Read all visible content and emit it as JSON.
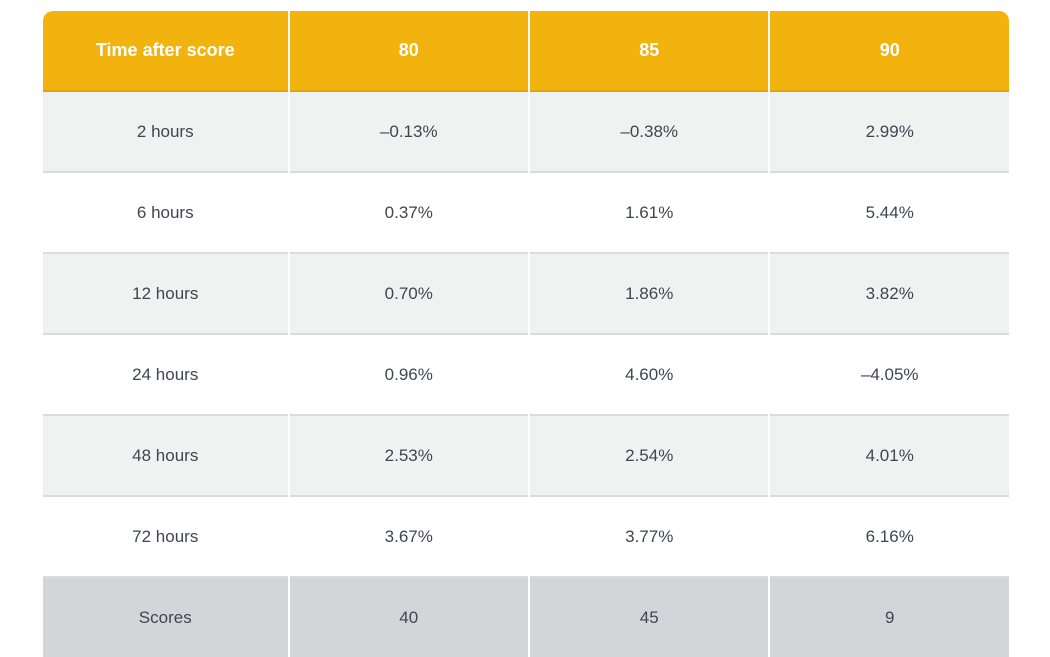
{
  "colors": {
    "header_bg": "#F2B30E",
    "header_text": "#FFFFFF",
    "header_bottom_border": "#DDA30F",
    "row_alt_bg": "#F0F2F2",
    "row_bg": "#FFFFFF",
    "row_border": "#D8DCDF",
    "footer_bg": "#D2D6D8",
    "cell_text": "#3E4650",
    "column_separator": "#FFFFFF"
  },
  "table": {
    "header": {
      "c0": "Time after score",
      "c1": "80",
      "c2": "85",
      "c3": "90"
    },
    "rows": [
      {
        "c0": "2 hours",
        "c1": "–0.13%",
        "c2": "–0.38%",
        "c3": "2.99%"
      },
      {
        "c0": "6 hours",
        "c1": "0.37%",
        "c2": "1.61%",
        "c3": "5.44%"
      },
      {
        "c0": "12 hours",
        "c1": "0.70%",
        "c2": "1.86%",
        "c3": "3.82%"
      },
      {
        "c0": "24 hours",
        "c1": "0.96%",
        "c2": "4.60%",
        "c3": "–4.05%"
      },
      {
        "c0": "48 hours",
        "c1": "2.53%",
        "c2": "2.54%",
        "c3": "4.01%"
      },
      {
        "c0": "72 hours",
        "c1": "3.67%",
        "c2": "3.77%",
        "c3": "6.16%"
      }
    ],
    "footer": {
      "c0": "Scores",
      "c1": "40",
      "c2": "45",
      "c3": "9"
    }
  },
  "chart_data": {
    "type": "table",
    "title": "",
    "columns": [
      "Time after score",
      "80",
      "85",
      "90"
    ],
    "categories": [
      "2 hours",
      "6 hours",
      "12 hours",
      "24 hours",
      "48 hours",
      "72 hours"
    ],
    "series": [
      {
        "name": "80",
        "values": [
          -0.13,
          0.37,
          0.7,
          0.96,
          2.53,
          3.67
        ]
      },
      {
        "name": "85",
        "values": [
          -0.38,
          1.61,
          1.86,
          4.6,
          2.54,
          3.77
        ]
      },
      {
        "name": "90",
        "values": [
          2.99,
          5.44,
          3.82,
          -4.05,
          4.01,
          6.16
        ]
      }
    ],
    "unit": "%",
    "footer_row": {
      "label": "Scores",
      "values": [
        40,
        45,
        9
      ]
    },
    "legend_position": "none",
    "grid": false
  }
}
